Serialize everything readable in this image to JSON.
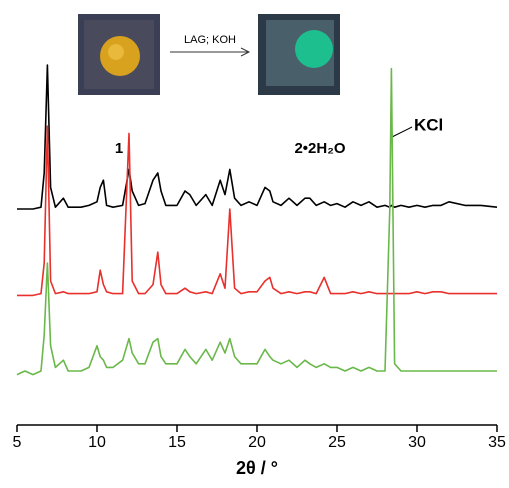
{
  "chart_data": {
    "type": "line",
    "scheme": {
      "reagent": "LAG; KOH",
      "reactant": "1",
      "product": "2•2H₂O"
    },
    "annotation": "KCl",
    "x_label": "2θ / °",
    "xlim": [
      5,
      35
    ],
    "xticks": [
      5,
      10,
      15,
      20,
      25,
      30,
      35
    ],
    "ylim": [
      0,
      110
    ],
    "x": [
      5,
      5.5,
      6,
      6.5,
      6.7,
      6.9,
      7.1,
      7.4,
      7.9,
      8.2,
      9,
      9.5,
      10.0,
      10.2,
      10.4,
      10.6,
      11,
      11.6,
      12.0,
      12.2,
      12.6,
      13.0,
      13.5,
      13.8,
      14.0,
      14.3,
      15.0,
      15.5,
      15.8,
      16.2,
      16.8,
      17.2,
      17.7,
      18.0,
      18.3,
      18.6,
      19.0,
      19.5,
      20.0,
      20.5,
      20.8,
      21.0,
      21.5,
      22.0,
      22.5,
      23.0,
      23.3,
      23.7,
      24.2,
      24.6,
      25.0,
      25.5,
      26.0,
      26.5,
      27.0,
      27.5,
      28.0,
      28.3,
      28.4,
      28.6,
      29.0,
      29.5,
      30.0,
      30.5,
      31.0,
      31.5,
      32.0,
      33.0,
      34.0,
      35
    ],
    "series": [
      {
        "color": "#000000",
        "values": [
          60,
          60,
          60,
          60.5,
          70,
          100,
          66,
          60.5,
          63,
          60.5,
          60.5,
          61,
          62,
          66,
          68,
          61,
          60.5,
          61,
          71,
          65,
          61,
          61.5,
          68,
          70,
          65,
          61,
          61,
          65,
          64,
          61,
          64,
          61,
          68,
          64,
          71,
          63,
          61,
          62,
          61,
          66,
          65,
          62,
          61,
          63,
          61,
          63,
          63,
          61,
          62,
          61,
          61.5,
          60.5,
          62,
          61,
          62,
          60.5,
          61,
          60.5,
          61,
          60.5,
          61,
          60.5,
          61,
          60.5,
          61,
          61,
          62,
          61,
          61,
          60.5
        ]
      },
      {
        "color": "#e8302c",
        "values": [
          36,
          36,
          36,
          36.5,
          45,
          83,
          40,
          36.5,
          37,
          36.5,
          36.5,
          36.5,
          37,
          43,
          39,
          37,
          36.5,
          36.5,
          81,
          40,
          36.5,
          36.5,
          39,
          48,
          39,
          36.5,
          36.5,
          38,
          37,
          36.5,
          37,
          36.5,
          42,
          38,
          60,
          38,
          36.5,
          37,
          37,
          40,
          41,
          38,
          36.5,
          37,
          36.5,
          37,
          37,
          36.5,
          41,
          36.5,
          36.5,
          36.5,
          37,
          36.5,
          37,
          36.5,
          36.5,
          36.5,
          36.5,
          36.5,
          36.5,
          36.5,
          37,
          36.5,
          37,
          37,
          36.5,
          36.5,
          36.5,
          36.5
        ]
      },
      {
        "color": "#6ab84a",
        "values": [
          14,
          15,
          14,
          15,
          25,
          45,
          22,
          16,
          18,
          15,
          15,
          16,
          22,
          19,
          18,
          16,
          16,
          18,
          24,
          20,
          17,
          17,
          23,
          24,
          19,
          17,
          17,
          21,
          19,
          17,
          21,
          18,
          23,
          20,
          24,
          19,
          17,
          17,
          17,
          21,
          19,
          18,
          17,
          18,
          16,
          18,
          17,
          16,
          17,
          16,
          16,
          15,
          16,
          15,
          16,
          15,
          15,
          60,
          99,
          17,
          15,
          15,
          15,
          15,
          15,
          15,
          15,
          15,
          15,
          15
        ]
      }
    ]
  }
}
